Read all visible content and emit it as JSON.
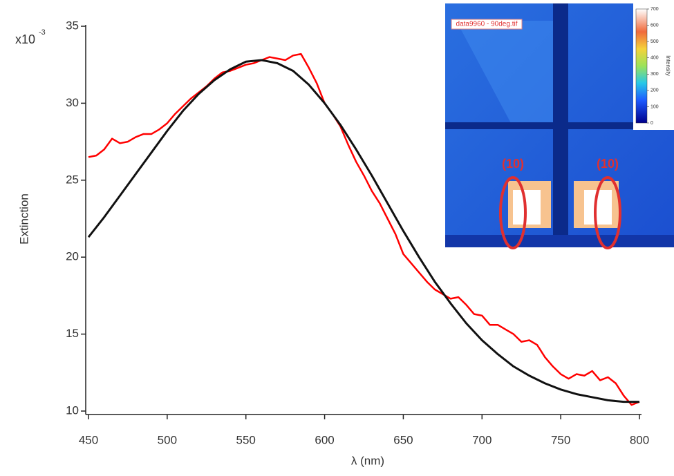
{
  "chart_data": {
    "type": "line",
    "xlabel": "λ (nm)",
    "ylabel": "Extinction",
    "y_multiplier": "x10",
    "y_multiplier_exponent": "-3",
    "xlim": [
      450,
      800
    ],
    "xticks": [
      450,
      500,
      550,
      600,
      650,
      700,
      750,
      800
    ],
    "ylim": [
      10,
      35
    ],
    "yticks": [
      10,
      15,
      20,
      25,
      30,
      35
    ],
    "series": [
      {
        "color": "#ff0000",
        "x": [
          450,
          455,
          460,
          465,
          470,
          475,
          480,
          485,
          490,
          495,
          500,
          505,
          510,
          515,
          520,
          525,
          530,
          535,
          540,
          545,
          550,
          555,
          560,
          565,
          570,
          575,
          580,
          585,
          590,
          595,
          600,
          605,
          610,
          615,
          620,
          625,
          630,
          635,
          640,
          645,
          650,
          655,
          660,
          665,
          670,
          675,
          680,
          685,
          690,
          695,
          700,
          705,
          710,
          715,
          720,
          725,
          730,
          735,
          740,
          745,
          750,
          755,
          760,
          765,
          770,
          775,
          780,
          785,
          790,
          795,
          800
        ],
        "values": [
          26.5,
          26.6,
          27.0,
          27.7,
          27.4,
          27.5,
          27.8,
          28.0,
          28.0,
          28.3,
          28.7,
          29.3,
          29.8,
          30.3,
          30.7,
          31.1,
          31.6,
          32.0,
          32.1,
          32.3,
          32.5,
          32.6,
          32.8,
          33.0,
          32.9,
          32.8,
          33.1,
          33.2,
          32.3,
          31.3,
          30.0,
          29.3,
          28.5,
          27.3,
          26.2,
          25.3,
          24.3,
          23.5,
          22.5,
          21.5,
          20.2,
          19.6,
          19.0,
          18.4,
          17.9,
          17.6,
          17.3,
          17.4,
          16.9,
          16.3,
          16.2,
          15.6,
          15.6,
          15.3,
          15.0,
          14.5,
          14.6,
          14.3,
          13.5,
          12.9,
          12.4,
          12.1,
          12.4,
          12.3,
          12.6,
          12.0,
          12.2,
          11.8,
          11.0,
          10.4,
          10.6
        ]
      },
      {
        "color": "#111111",
        "x": [
          450,
          460,
          470,
          480,
          490,
          500,
          510,
          520,
          530,
          540,
          550,
          560,
          570,
          580,
          590,
          600,
          610,
          620,
          630,
          640,
          650,
          660,
          670,
          680,
          690,
          700,
          710,
          720,
          730,
          740,
          750,
          760,
          770,
          780,
          790,
          800
        ],
        "values": [
          21.3,
          22.6,
          24.0,
          25.4,
          26.8,
          28.2,
          29.5,
          30.6,
          31.5,
          32.2,
          32.7,
          32.8,
          32.6,
          32.1,
          31.2,
          30.0,
          28.6,
          27.0,
          25.3,
          23.5,
          21.7,
          20.0,
          18.4,
          17.0,
          15.7,
          14.6,
          13.7,
          12.9,
          12.3,
          11.8,
          11.4,
          11.1,
          10.9,
          10.7,
          10.6,
          10.6
        ]
      }
    ],
    "inset": {
      "file_label": "data9960 - 90deg.tif",
      "peak_labels": [
        "(10)",
        "(10)"
      ],
      "colorbar_title": "Intensity",
      "colorbar_ticks": [
        0,
        100,
        200,
        300,
        400,
        500,
        600,
        700
      ]
    }
  }
}
